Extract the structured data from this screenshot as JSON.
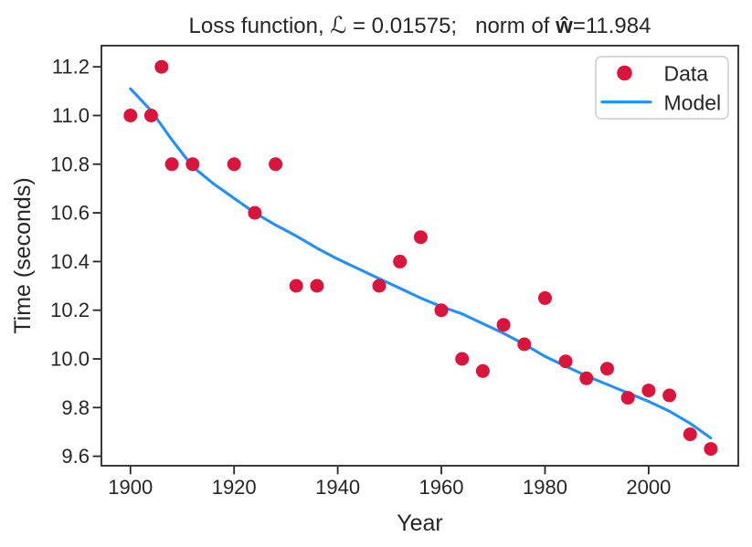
{
  "title": {
    "part1": "Loss function, ",
    "loss_symbol": "ℒ",
    "part2": " = 0.01575;   ",
    "part3": "norm of ",
    "w_symbol": "ŵ",
    "part4": "=11.984"
  },
  "colors": {
    "data_marker": "#DC143C",
    "model_line": "#1E90FF",
    "spine": "#262626",
    "text": "#262626",
    "legend_border": "#cccccc",
    "background": "#ffffff"
  },
  "chart_data": {
    "type": "scatter",
    "title": "Loss function, ℒ = 0.01575;   norm of ŵ=11.984",
    "xlabel": "Year",
    "ylabel": "Time (seconds)",
    "xlim": [
      1894.4,
      2017.3
    ],
    "ylim": [
      9.561,
      11.287
    ],
    "grid": false,
    "xticks": {
      "values": [
        1900,
        1920,
        1940,
        1960,
        1980,
        2000
      ],
      "labels": [
        "1900",
        "1920",
        "1940",
        "1960",
        "1980",
        "2000"
      ]
    },
    "yticks": {
      "values": [
        9.6,
        9.8,
        10.0,
        10.2,
        10.4,
        10.6,
        10.8,
        11.0,
        11.2
      ],
      "labels": [
        "9.6",
        "9.8",
        "10.0",
        "10.2",
        "10.4",
        "10.6",
        "10.8",
        "11.0",
        "11.2"
      ]
    },
    "legend": {
      "position": "upper right",
      "entries": [
        {
          "label": "Data",
          "handle": "circle",
          "color": "#DC143C"
        },
        {
          "label": "Model",
          "handle": "line",
          "color": "#1E90FF"
        }
      ]
    },
    "series": [
      {
        "name": "Data",
        "type": "scatter",
        "color": "#DC143C",
        "points": [
          [
            1900,
            11.0
          ],
          [
            1904,
            11.0
          ],
          [
            1906,
            11.2
          ],
          [
            1908,
            10.8
          ],
          [
            1912,
            10.8
          ],
          [
            1920,
            10.8
          ],
          [
            1924,
            10.6
          ],
          [
            1928,
            10.8
          ],
          [
            1932,
            10.3
          ],
          [
            1936,
            10.3
          ],
          [
            1948,
            10.3
          ],
          [
            1952,
            10.4
          ],
          [
            1956,
            10.5
          ],
          [
            1960,
            10.2
          ],
          [
            1964,
            10.0
          ],
          [
            1968,
            9.95
          ],
          [
            1972,
            10.14
          ],
          [
            1976,
            10.06
          ],
          [
            1980,
            10.25
          ],
          [
            1984,
            9.99
          ],
          [
            1988,
            9.92
          ],
          [
            1992,
            9.96
          ],
          [
            1996,
            9.84
          ],
          [
            2000,
            9.87
          ],
          [
            2004,
            9.85
          ],
          [
            2008,
            9.69
          ],
          [
            2012,
            9.63
          ]
        ]
      },
      {
        "name": "Model",
        "type": "line",
        "color": "#1E90FF",
        "points": [
          [
            1900,
            11.11
          ],
          [
            1902,
            11.065
          ],
          [
            1904,
            11.02
          ],
          [
            1908,
            10.9
          ],
          [
            1912,
            10.79
          ],
          [
            1916,
            10.72
          ],
          [
            1920,
            10.66
          ],
          [
            1924,
            10.6
          ],
          [
            1928,
            10.55
          ],
          [
            1932,
            10.505
          ],
          [
            1936,
            10.455
          ],
          [
            1940,
            10.41
          ],
          [
            1944,
            10.37
          ],
          [
            1948,
            10.33
          ],
          [
            1952,
            10.29
          ],
          [
            1956,
            10.25
          ],
          [
            1960,
            10.215
          ],
          [
            1964,
            10.185
          ],
          [
            1968,
            10.145
          ],
          [
            1972,
            10.105
          ],
          [
            1976,
            10.06
          ],
          [
            1980,
            10.01
          ],
          [
            1984,
            9.97
          ],
          [
            1988,
            9.93
          ],
          [
            1992,
            9.895
          ],
          [
            1996,
            9.86
          ],
          [
            2000,
            9.825
          ],
          [
            2004,
            9.785
          ],
          [
            2008,
            9.735
          ],
          [
            2012,
            9.675
          ]
        ]
      }
    ]
  }
}
